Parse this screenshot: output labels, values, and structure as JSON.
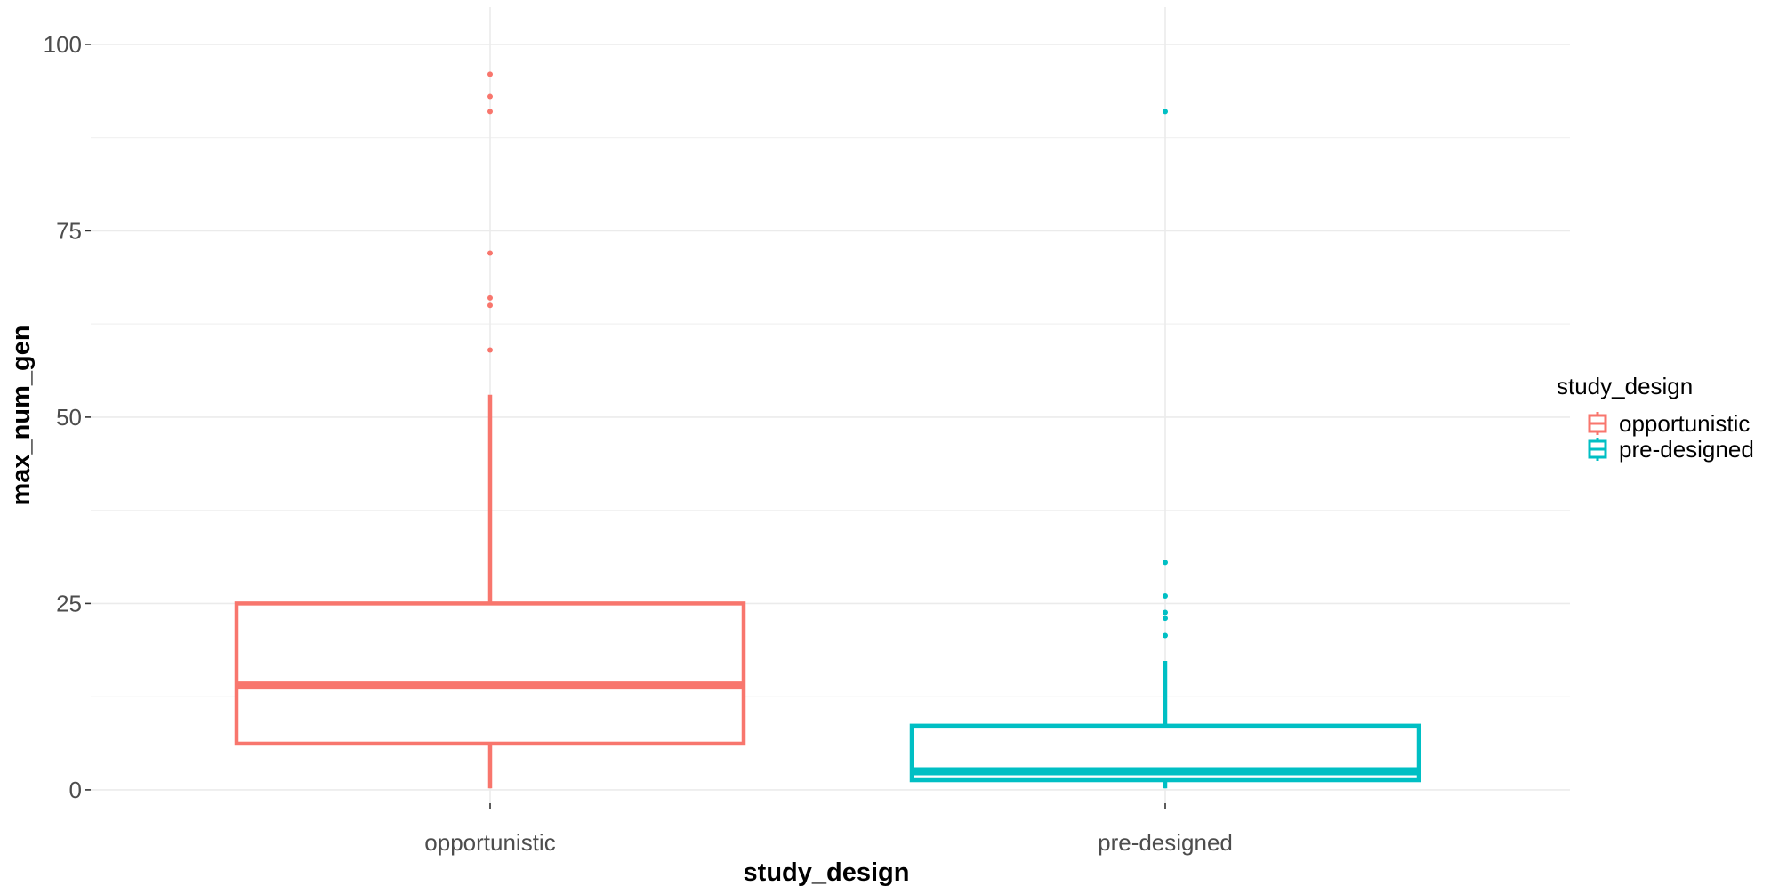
{
  "chart_data": {
    "type": "boxplot",
    "xlabel": "study_design",
    "ylabel": "max_num_gen",
    "categories": [
      "opportunistic",
      "pre-designed"
    ],
    "ylim": [
      -1.8,
      105
    ],
    "yticks": [
      0,
      25,
      50,
      75,
      100
    ],
    "grid": true,
    "legend": {
      "title": "study_design",
      "position": "right",
      "entries": [
        {
          "label": "opportunistic",
          "color": "#F8766D"
        },
        {
          "label": "pre-designed",
          "color": "#00BFC4"
        }
      ]
    },
    "series": [
      {
        "name": "opportunistic",
        "color": "#F8766D",
        "min": 0.2,
        "q1": 6.2,
        "median": 14,
        "q3": 25,
        "max": 53,
        "outliers": [
          59,
          65,
          66,
          72,
          91,
          93,
          96
        ]
      },
      {
        "name": "pre-designed",
        "color": "#00BFC4",
        "min": 0.2,
        "q1": 1.3,
        "median": 2.5,
        "q3": 8.6,
        "max": 17.3,
        "outliers": [
          20.7,
          23,
          23.8,
          26,
          30.5,
          91
        ]
      }
    ]
  }
}
